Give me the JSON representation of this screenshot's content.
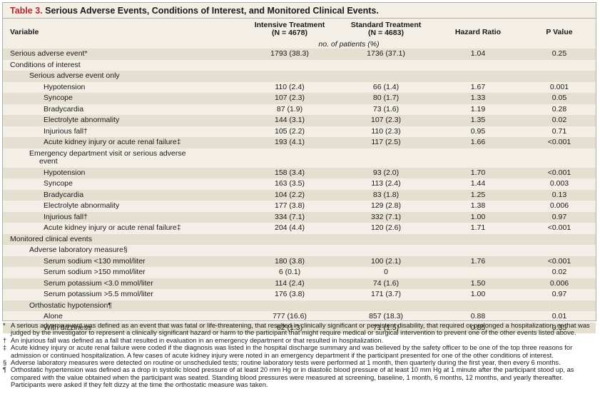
{
  "table": {
    "number": "Table 3.",
    "title": "Serious Adverse Events, Conditions of Interest, and Monitored Clinical Events."
  },
  "columns": {
    "variable": "Variable",
    "intensive_line1": "Intensive Treatment",
    "intensive_line2": "(N = 4678)",
    "standard_line1": "Standard Treatment",
    "standard_line2": "(N = 4683)",
    "hazard": "Hazard Ratio",
    "pvalue": "P Value",
    "units": "no. of patients (%)"
  },
  "rows": [
    {
      "label": "Serious adverse event*",
      "indent": 0,
      "intensive": "1793 (38.3)",
      "standard": "1736 (37.1)",
      "hr": "1.04",
      "p": "0.25"
    },
    {
      "label": "Conditions of interest",
      "indent": 0,
      "intensive": "",
      "standard": "",
      "hr": "",
      "p": ""
    },
    {
      "label": "Serious adverse event only",
      "indent": 1,
      "intensive": "",
      "standard": "",
      "hr": "",
      "p": ""
    },
    {
      "label": "Hypotension",
      "indent": 2,
      "intensive": "110 (2.4)",
      "standard": "66 (1.4)",
      "hr": "1.67",
      "p": "0.001"
    },
    {
      "label": "Syncope",
      "indent": 2,
      "intensive": "107 (2.3)",
      "standard": "80 (1.7)",
      "hr": "1.33",
      "p": "0.05"
    },
    {
      "label": "Bradycardia",
      "indent": 2,
      "intensive": "87 (1.9)",
      "standard": "73 (1.6)",
      "hr": "1.19",
      "p": "0.28"
    },
    {
      "label": "Electrolyte abnormality",
      "indent": 2,
      "intensive": "144 (3.1)",
      "standard": "107 (2.3)",
      "hr": "1.35",
      "p": "0.02"
    },
    {
      "label": "Injurious fall†",
      "indent": 2,
      "intensive": "105 (2.2)",
      "standard": "110 (2.3)",
      "hr": "0.95",
      "p": "0.71"
    },
    {
      "label": "Acute kidney injury or acute renal failure‡",
      "indent": 2,
      "intensive": "193 (4.1)",
      "standard": "117 (2.5)",
      "hr": "1.66",
      "p": "<0.001"
    },
    {
      "label": "Emergency department visit or serious adverse",
      "label2": "event",
      "indent": 1,
      "intensive": "",
      "standard": "",
      "hr": "",
      "p": ""
    },
    {
      "label": "Hypotension",
      "indent": 2,
      "intensive": "158 (3.4)",
      "standard": "93 (2.0)",
      "hr": "1.70",
      "p": "<0.001"
    },
    {
      "label": "Syncope",
      "indent": 2,
      "intensive": "163 (3.5)",
      "standard": "113 (2.4)",
      "hr": "1.44",
      "p": "0.003"
    },
    {
      "label": "Bradycardia",
      "indent": 2,
      "intensive": "104 (2.2)",
      "standard": "83 (1.8)",
      "hr": "1.25",
      "p": "0.13"
    },
    {
      "label": "Electrolyte abnormality",
      "indent": 2,
      "intensive": "177 (3.8)",
      "standard": "129 (2.8)",
      "hr": "1.38",
      "p": "0.006"
    },
    {
      "label": "Injurious fall†",
      "indent": 2,
      "intensive": "334 (7.1)",
      "standard": "332 (7.1)",
      "hr": "1.00",
      "p": "0.97"
    },
    {
      "label": "Acute kidney injury or acute renal failure‡",
      "indent": 2,
      "intensive": "204 (4.4)",
      "standard": "120 (2.6)",
      "hr": "1.71",
      "p": "<0.001"
    },
    {
      "label": "Monitored clinical events",
      "indent": 0,
      "intensive": "",
      "standard": "",
      "hr": "",
      "p": ""
    },
    {
      "label": "Adverse laboratory measure§",
      "indent": 1,
      "intensive": "",
      "standard": "",
      "hr": "",
      "p": ""
    },
    {
      "label": "Serum sodium <130 mmol/liter",
      "indent": 2,
      "intensive": "180 (3.8)",
      "standard": "100 (2.1)",
      "hr": "1.76",
      "p": "<0.001"
    },
    {
      "label": "Serum sodium >150 mmol/liter",
      "indent": 2,
      "intensive": "6 (0.1)",
      "standard": "0",
      "hr": "",
      "p": "0.02"
    },
    {
      "label": "Serum potassium <3.0 mmol/liter",
      "indent": 2,
      "intensive": "114 (2.4)",
      "standard": "74 (1.6)",
      "hr": "1.50",
      "p": "0.006"
    },
    {
      "label": "Serum potassium >5.5 mmol/liter",
      "indent": 2,
      "intensive": "176 (3.8)",
      "standard": "171 (3.7)",
      "hr": "1.00",
      "p": "0.97"
    },
    {
      "label": "Orthostatic hypotension¶",
      "indent": 1,
      "intensive": "",
      "standard": "",
      "hr": "",
      "p": ""
    },
    {
      "label": "Alone",
      "indent": 2,
      "intensive": "777 (16.6)",
      "standard": "857 (18.3)",
      "hr": "0.88",
      "p": "0.01"
    },
    {
      "label": "With dizziness",
      "indent": 2,
      "intensive": "62 (1.3)",
      "standard": "71 (1.5)",
      "hr": "0.85",
      "p": "0.35"
    }
  ],
  "footnotes": [
    {
      "symbol": "*",
      "text": "A serious adverse event was defined as an event that was fatal or life-threatening, that resulted in clinically significant or persistent disability, that required or prolonged a hospitalization, or that was judged by the investigator to represent a clinically significant hazard or harm to the participant that might require medical or surgical intervention to prevent one of the other events listed above."
    },
    {
      "symbol": "†",
      "text": "An injurious fall was defined as a fall that resulted in evaluation in an emergency department or that resulted in hospitalization."
    },
    {
      "symbol": "‡",
      "text": "Acute kidney injury or acute renal failure were coded if the diagnosis was listed in the hospital discharge summary and was believed by the safety officer to be one of the top three reasons for admission or continued hospitalization. A few cases of acute kidney injury were noted in an emergency department if the participant presented for one of the other conditions of interest."
    },
    {
      "symbol": "§",
      "text": "Adverse laboratory measures were detected on routine or unscheduled tests; routine laboratory tests were performed at 1 month, then quarterly during the first year, then every 6 months."
    },
    {
      "symbol": "¶",
      "text": "Orthostatic hypertension was defined as a drop in systolic blood pressure of at least 20 mm Hg or in diastolic blood pressure of at least 10 mm Hg at 1 minute after the participant stood up, as compared with the value obtained when the participant was seated. Standing blood pressures were measured at screening, baseline, 1 month, 6 months, 12 months, and yearly thereafter. Participants were asked if they felt dizzy at the time the orthostatic measure was taken."
    }
  ]
}
